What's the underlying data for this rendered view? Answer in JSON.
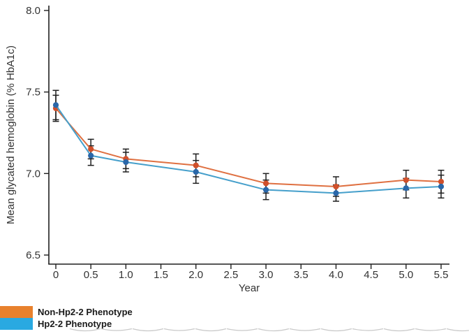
{
  "chart_data": {
    "type": "line",
    "title": "",
    "xlabel": "Year",
    "ylabel": "Mean glycated hemoglobin (% HbA1c)",
    "xlim": [
      0,
      5.5
    ],
    "ylim": [
      6.5,
      8.0
    ],
    "grid": false,
    "legend_position": "bottom-left-outside",
    "marker": "circle",
    "axis_color": "#1f1f1f",
    "error_bar_color": "#1f1f1f",
    "tick_label_color": "#333333",
    "x_ticks": {
      "values": [
        0,
        0.5,
        1.0,
        1.5,
        2.0,
        2.5,
        3.0,
        3.5,
        4.0,
        4.5,
        5.0,
        5.5
      ],
      "labels": [
        "0",
        "0.5",
        "1.0",
        "1.5",
        "2.0",
        "2.5",
        "3.0",
        "3.5",
        "4.0",
        "4.5",
        "5.0",
        "5.5"
      ]
    },
    "y_ticks": {
      "values": [
        6.5,
        7.0,
        7.5,
        8.0
      ],
      "labels": [
        "6.5",
        "7.0",
        "7.5",
        "8.0"
      ]
    },
    "x": [
      0,
      0.5,
      1.0,
      2.0,
      3.0,
      4.0,
      5.0,
      5.5
    ],
    "series": [
      {
        "name": "Non-Hp2-2 Phenotype",
        "line_color": "#DF7041",
        "marker_color": "#D0502B",
        "legend_color": "#E8812D",
        "values": [
          7.4,
          7.15,
          7.09,
          7.05,
          6.94,
          6.92,
          6.96,
          6.95
        ],
        "errors": [
          0.08,
          0.06,
          0.06,
          0.07,
          0.06,
          0.06,
          0.06,
          0.07
        ]
      },
      {
        "name": "Hp2-2 Phenotype",
        "line_color": "#459FCB",
        "marker_color": "#2A67A9",
        "legend_color": "#29A9E1",
        "values": [
          7.42,
          7.11,
          7.07,
          7.01,
          6.9,
          6.88,
          6.91,
          6.92
        ],
        "errors": [
          0.09,
          0.06,
          0.06,
          0.07,
          0.06,
          0.05,
          0.06,
          0.07
        ]
      }
    ]
  }
}
